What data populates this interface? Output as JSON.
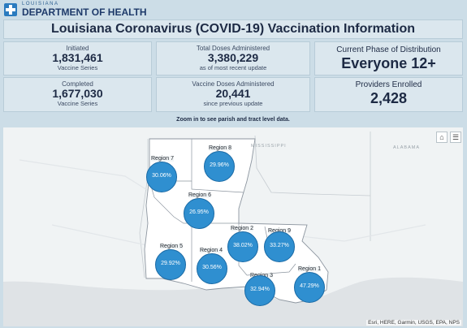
{
  "header": {
    "logo_small": "LOUISIANA",
    "logo_big": "DEPARTMENT OF HEALTH",
    "logo_icon": "ldh-cross-logo",
    "title": "Louisiana Coronavirus (COVID-19) Vaccination Information"
  },
  "cards": {
    "initiated": {
      "label": "Initiated",
      "value": "1,831,461",
      "sub": "Vaccine Series"
    },
    "completed": {
      "label": "Completed",
      "value": "1,677,030",
      "sub": "Vaccine Series"
    },
    "total_doses": {
      "label": "Total Doses Administered",
      "value": "3,380,229",
      "sub": "as of most recent update"
    },
    "doses_since": {
      "label": "Vaccine Doses Administered",
      "value": "20,441",
      "sub": "since previous update"
    },
    "phase": {
      "label": "Current Phase of Distribution",
      "value": "Everyone 12+"
    },
    "providers": {
      "label": "Providers Enrolled",
      "value": "2,428"
    }
  },
  "map": {
    "hint": "Zoom in to see parish and tract level data.",
    "state_labels": {
      "mississippi": "MISSISSIPPI",
      "alabama": "ALABAMA"
    },
    "attribution": "Esri, HERE, Garmin, USGS, EPA, NPS",
    "widgets": {
      "home_icon": "home-icon",
      "legend_icon": "list-icon"
    },
    "regions": [
      {
        "name": "Region 7",
        "pct": "30.06%"
      },
      {
        "name": "Region 8",
        "pct": "29.96%"
      },
      {
        "name": "Region 6",
        "pct": "26.95%"
      },
      {
        "name": "Region 5",
        "pct": "29.92%"
      },
      {
        "name": "Region 4",
        "pct": "30.56%"
      },
      {
        "name": "Region 2",
        "pct": "38.02%"
      },
      {
        "name": "Region 9",
        "pct": "33.27%"
      },
      {
        "name": "Region 3",
        "pct": "32.94%"
      },
      {
        "name": "Region 1",
        "pct": "47.29%"
      }
    ],
    "colors": {
      "bubble": "#2f8fd0",
      "water": "#dfe3e6",
      "land": "#f0f3f4"
    }
  }
}
